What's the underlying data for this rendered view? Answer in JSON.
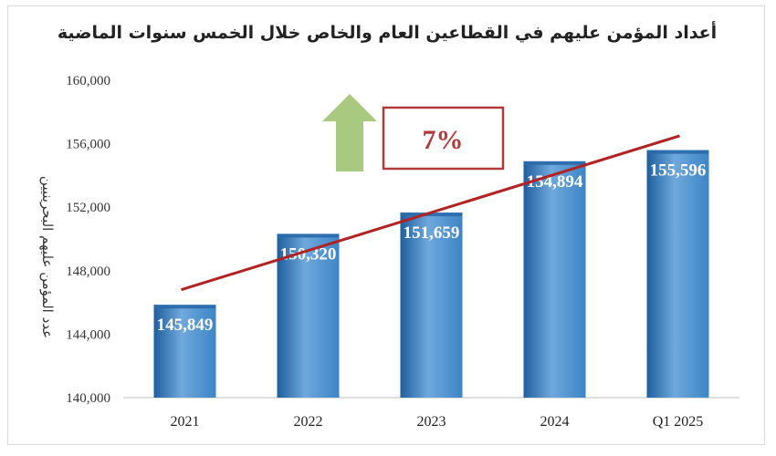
{
  "chart_data": {
    "type": "bar",
    "title": "أعداد المؤمن عليهم في القطاعين العام والخاص خلال الخمس سنوات الماضية",
    "ylabel": "عدد المؤمن عليهم البحرينيين",
    "xlabel": "",
    "categories": [
      "2021",
      "2022",
      "2023",
      "2024",
      "Q1 2025"
    ],
    "values": [
      145849,
      150320,
      151659,
      154894,
      155596
    ],
    "value_labels": [
      "145,849",
      "150,320",
      "151,659",
      "154,894",
      "155,596"
    ],
    "ylim": [
      140000,
      160000
    ],
    "yticks": [
      140000,
      144000,
      148000,
      152000,
      156000,
      160000
    ],
    "ytick_labels": [
      "140,000",
      "144,000",
      "148,000",
      "152,000",
      "156,000",
      "160,000"
    ],
    "grid": false,
    "trendline": {
      "start": 146800,
      "end": 156500
    },
    "annotation": {
      "text": "7%",
      "arrow": "up"
    },
    "colors": {
      "bar_top": "#6fa8dc",
      "bar_mid": "#3d85c6",
      "bar_bottom": "#1f5f9e",
      "trend": "#b22222",
      "arrow": "#a8c97f",
      "annotation_border": "#b23a3a"
    }
  }
}
